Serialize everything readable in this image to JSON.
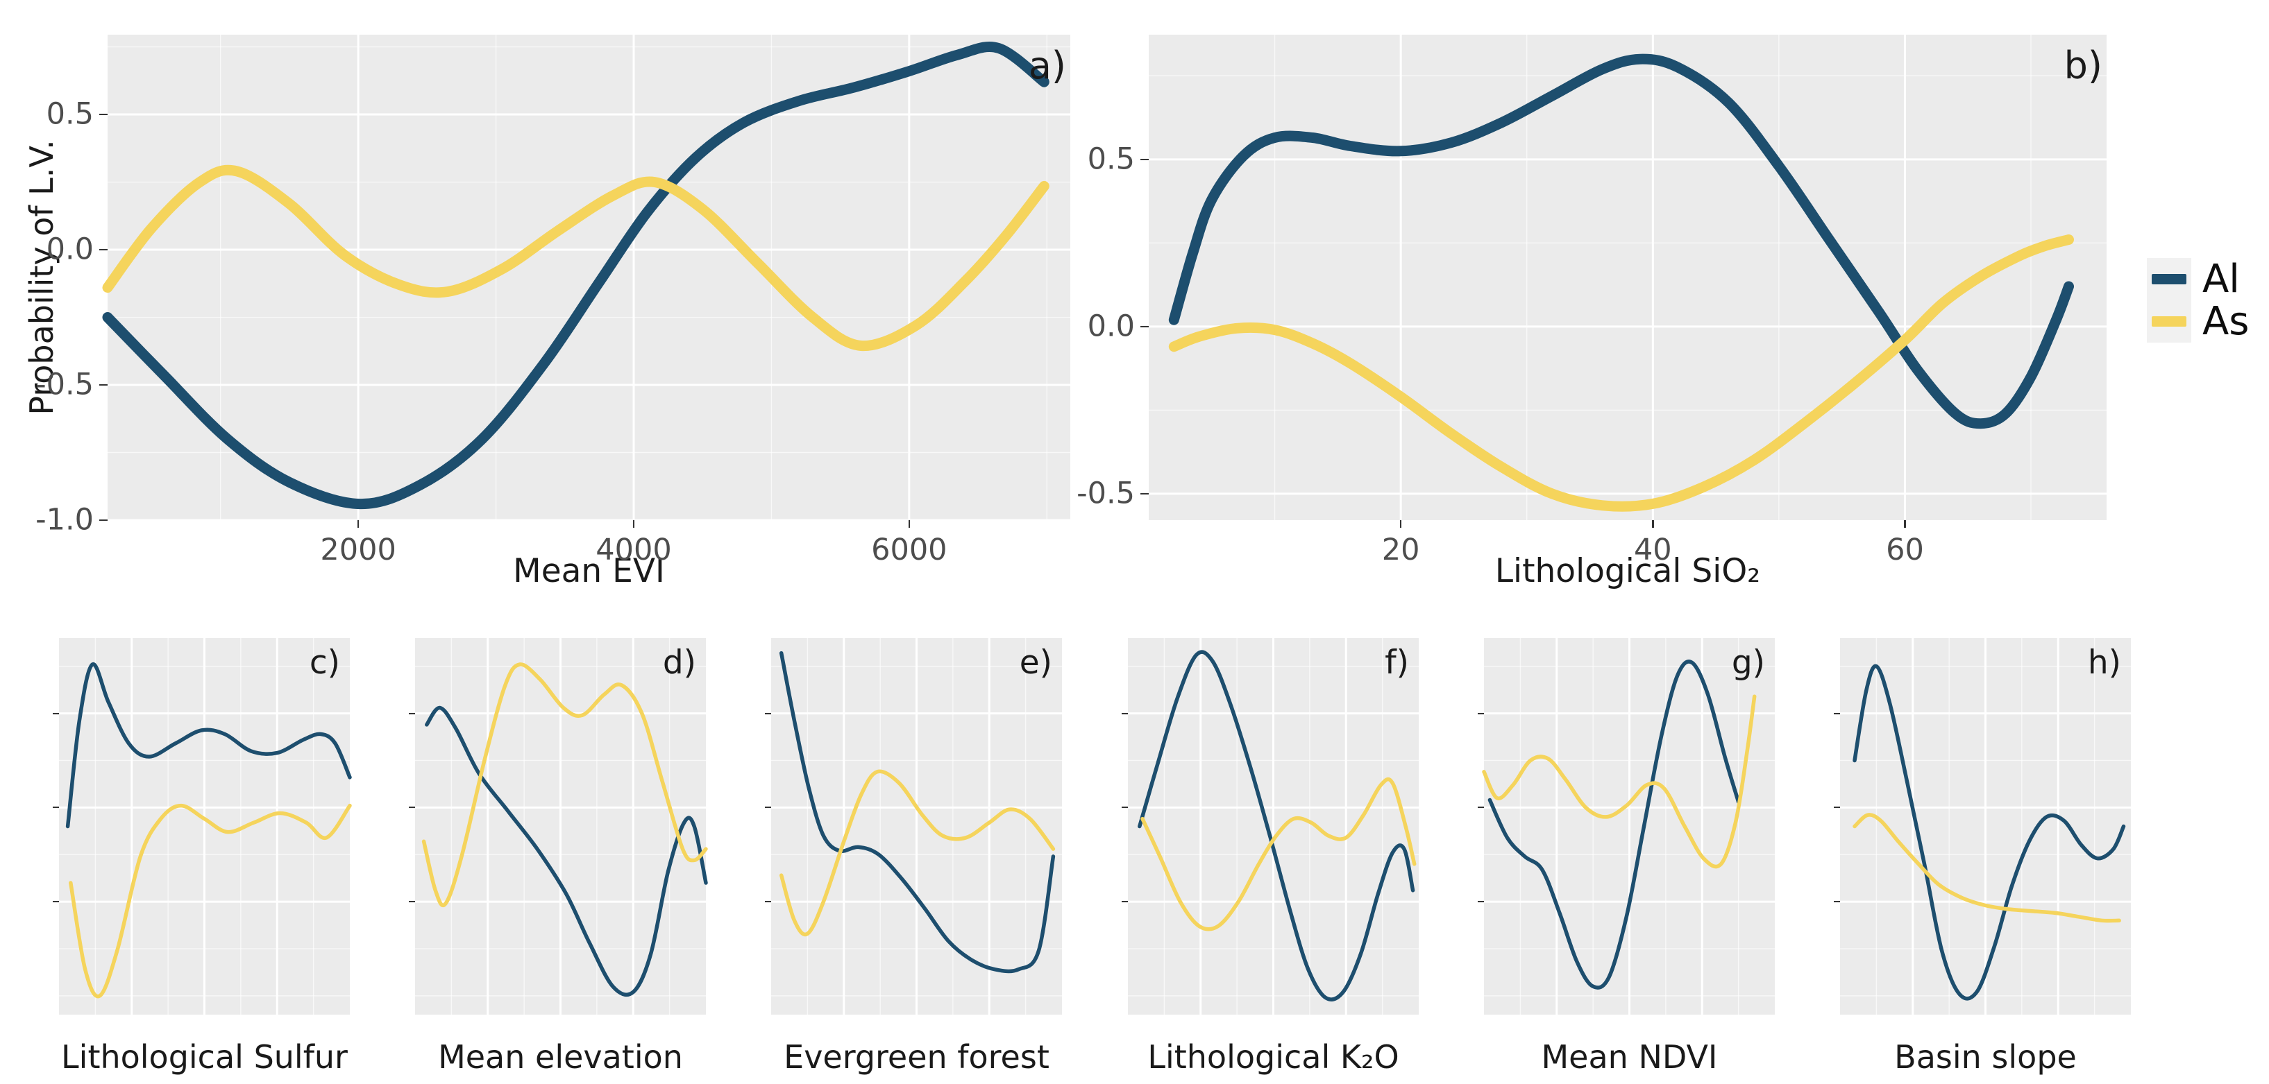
{
  "ylabel": "Probability of L.V.",
  "colors": {
    "al": "#1d4e6e",
    "as": "#f5d45c",
    "panel_bg": "#ebebeb",
    "grid": "#ffffff",
    "tick_text": "#4d4d4d",
    "title_text": "#1a1a1a"
  },
  "legend": {
    "items": [
      {
        "label": "Al",
        "color_key": "al"
      },
      {
        "label": "As",
        "color_key": "as"
      }
    ]
  },
  "chart_data": [
    {
      "id": "a",
      "type": "line",
      "letter": "a)",
      "xlabel": "Mean EVI",
      "xlim": [
        180,
        7170
      ],
      "ylim": [
        -1.0,
        0.795
      ],
      "xticks": [
        {
          "v": 2000,
          "label": "2000"
        },
        {
          "v": 4000,
          "label": "4000"
        },
        {
          "v": 6000,
          "label": "6000"
        }
      ],
      "yticks": [
        {
          "v": 0.5,
          "label": "0.5"
        },
        {
          "v": 0.0,
          "label": "0.0"
        },
        {
          "v": -0.5,
          "label": "-0.5"
        },
        {
          "v": -1.0,
          "label": "-1.0"
        }
      ],
      "xminor": [
        1000,
        3000,
        5000,
        7000
      ],
      "yminor": [
        0.75,
        0.25,
        -0.25,
        -0.75
      ],
      "series": [
        {
          "name": "Al",
          "color_key": "al",
          "x": [
            180,
            600,
            1050,
            1500,
            2010,
            2450,
            2900,
            3350,
            3750,
            4100,
            4450,
            4800,
            5200,
            5600,
            6000,
            6350,
            6650,
            6980
          ],
          "y": [
            -0.25,
            -0.47,
            -0.7,
            -0.86,
            -0.94,
            -0.87,
            -0.7,
            -0.42,
            -0.12,
            0.14,
            0.34,
            0.47,
            0.55,
            0.6,
            0.66,
            0.72,
            0.745,
            0.62
          ]
        },
        {
          "name": "As",
          "color_key": "as",
          "x": [
            180,
            500,
            850,
            1120,
            1500,
            1900,
            2300,
            2650,
            3050,
            3450,
            3850,
            4150,
            4500,
            4900,
            5300,
            5650,
            6050,
            6400,
            6700,
            6980
          ],
          "y": [
            -0.14,
            0.08,
            0.25,
            0.29,
            0.17,
            -0.02,
            -0.13,
            -0.155,
            -0.07,
            0.07,
            0.2,
            0.25,
            0.15,
            -0.05,
            -0.25,
            -0.355,
            -0.28,
            -0.12,
            0.05,
            0.235
          ]
        }
      ]
    },
    {
      "id": "b",
      "type": "line",
      "letter": "b)",
      "xlabel": "Lithological SiO₂",
      "xlim": [
        0,
        76
      ],
      "ylim": [
        -0.579,
        0.873
      ],
      "xticks": [
        {
          "v": 20,
          "label": "20"
        },
        {
          "v": 40,
          "label": "40"
        },
        {
          "v": 60,
          "label": "60"
        }
      ],
      "yticks": [
        {
          "v": 0.5,
          "label": "0.5"
        },
        {
          "v": 0.0,
          "label": "0.0"
        },
        {
          "v": -0.5,
          "label": "-0.5"
        }
      ],
      "xminor": [
        10,
        30,
        50,
        70
      ],
      "yminor": [
        0.75,
        0.25,
        -0.25
      ],
      "series": [
        {
          "name": "Al",
          "color_key": "al",
          "x": [
            2,
            3.5,
            5,
            7.5,
            10,
            13,
            16,
            20,
            24,
            28,
            32,
            36,
            39,
            42,
            46,
            50,
            54,
            58,
            61,
            64,
            66,
            68,
            70,
            72,
            73
          ],
          "y": [
            0.02,
            0.22,
            0.38,
            0.51,
            0.565,
            0.565,
            0.54,
            0.525,
            0.55,
            0.61,
            0.69,
            0.77,
            0.8,
            0.775,
            0.67,
            0.48,
            0.26,
            0.04,
            -0.13,
            -0.26,
            -0.29,
            -0.26,
            -0.15,
            0.02,
            0.12
          ]
        },
        {
          "name": "As",
          "color_key": "as",
          "x": [
            2,
            4,
            7,
            10,
            13,
            16,
            20,
            24,
            28,
            32,
            36,
            40,
            44,
            48,
            52,
            56,
            60,
            63,
            66,
            69,
            71,
            73
          ],
          "y": [
            -0.06,
            -0.03,
            -0.005,
            -0.01,
            -0.05,
            -0.11,
            -0.21,
            -0.32,
            -0.42,
            -0.5,
            -0.535,
            -0.53,
            -0.48,
            -0.4,
            -0.29,
            -0.17,
            -0.04,
            0.07,
            0.15,
            0.21,
            0.24,
            0.26
          ]
        }
      ]
    },
    {
      "id": "c",
      "type": "line",
      "letter": "c)",
      "xlabel": "Lithological Sulfur",
      "xlim": [
        0,
        1
      ],
      "ylim": [
        0,
        1
      ],
      "xticks": [],
      "yticks": [],
      "xminor": [],
      "yminor": [],
      "series": [
        {
          "name": "Al",
          "color_key": "al",
          "x": [
            0.03,
            0.07,
            0.115,
            0.17,
            0.24,
            0.31,
            0.4,
            0.49,
            0.57,
            0.66,
            0.75,
            0.84,
            0.9,
            0.95,
            1.0
          ],
          "y": [
            0.5,
            0.78,
            0.93,
            0.83,
            0.72,
            0.685,
            0.72,
            0.755,
            0.745,
            0.7,
            0.695,
            0.73,
            0.745,
            0.72,
            0.63
          ]
        },
        {
          "name": "As",
          "color_key": "as",
          "x": [
            0.04,
            0.09,
            0.14,
            0.2,
            0.28,
            0.35,
            0.42,
            0.5,
            0.58,
            0.67,
            0.76,
            0.85,
            0.92,
            1.0
          ],
          "y": [
            0.35,
            0.12,
            0.05,
            0.17,
            0.42,
            0.52,
            0.555,
            0.52,
            0.485,
            0.51,
            0.535,
            0.51,
            0.47,
            0.555
          ]
        }
      ]
    },
    {
      "id": "d",
      "type": "line",
      "letter": "d)",
      "xlabel": "Mean elevation",
      "xlim": [
        0,
        1
      ],
      "ylim": [
        0,
        1
      ],
      "xticks": [],
      "yticks": [],
      "xminor": [],
      "yminor": [],
      "series": [
        {
          "name": "Al",
          "color_key": "al",
          "x": [
            0.04,
            0.085,
            0.14,
            0.22,
            0.32,
            0.42,
            0.52,
            0.6,
            0.68,
            0.75,
            0.81,
            0.87,
            0.925,
            0.96,
            1.0
          ],
          "y": [
            0.77,
            0.815,
            0.76,
            0.64,
            0.54,
            0.44,
            0.32,
            0.19,
            0.075,
            0.06,
            0.16,
            0.38,
            0.51,
            0.5,
            0.35
          ]
        },
        {
          "name": "As",
          "color_key": "as",
          "x": [
            0.03,
            0.07,
            0.105,
            0.16,
            0.24,
            0.31,
            0.36,
            0.43,
            0.51,
            0.575,
            0.65,
            0.71,
            0.78,
            0.85,
            0.92,
            0.96,
            1.0
          ],
          "y": [
            0.46,
            0.33,
            0.295,
            0.42,
            0.68,
            0.875,
            0.93,
            0.89,
            0.815,
            0.795,
            0.85,
            0.875,
            0.8,
            0.62,
            0.44,
            0.41,
            0.44
          ]
        }
      ]
    },
    {
      "id": "e",
      "type": "line",
      "letter": "e)",
      "xlabel": "Evergreen forest",
      "xlim": [
        0,
        1
      ],
      "ylim": [
        0,
        1
      ],
      "xticks": [],
      "yticks": [],
      "xminor": [],
      "yminor": [],
      "series": [
        {
          "name": "Al",
          "color_key": "al",
          "x": [
            0.035,
            0.08,
            0.13,
            0.18,
            0.235,
            0.3,
            0.37,
            0.45,
            0.53,
            0.61,
            0.69,
            0.77,
            0.85,
            0.92,
            0.97
          ],
          "y": [
            0.96,
            0.78,
            0.6,
            0.475,
            0.435,
            0.445,
            0.425,
            0.36,
            0.28,
            0.195,
            0.145,
            0.12,
            0.12,
            0.17,
            0.42
          ]
        },
        {
          "name": "As",
          "color_key": "as",
          "x": [
            0.035,
            0.08,
            0.125,
            0.18,
            0.25,
            0.31,
            0.365,
            0.44,
            0.52,
            0.59,
            0.67,
            0.75,
            0.82,
            0.89,
            0.97
          ],
          "y": [
            0.37,
            0.25,
            0.215,
            0.3,
            0.46,
            0.585,
            0.645,
            0.615,
            0.53,
            0.475,
            0.47,
            0.51,
            0.545,
            0.52,
            0.44
          ]
        }
      ]
    },
    {
      "id": "f",
      "type": "line",
      "letter": "f)",
      "xlabel": "Lithological K₂O",
      "xlim": [
        0,
        1
      ],
      "ylim": [
        0,
        1
      ],
      "xticks": [],
      "yticks": [],
      "xminor": [],
      "yminor": [],
      "series": [
        {
          "name": "Al",
          "color_key": "al",
          "x": [
            0.04,
            0.1,
            0.17,
            0.235,
            0.29,
            0.35,
            0.42,
            0.49,
            0.56,
            0.62,
            0.68,
            0.74,
            0.8,
            0.86,
            0.91,
            0.95,
            0.98
          ],
          "y": [
            0.5,
            0.66,
            0.84,
            0.955,
            0.94,
            0.83,
            0.66,
            0.47,
            0.27,
            0.12,
            0.045,
            0.06,
            0.16,
            0.32,
            0.43,
            0.44,
            0.33
          ]
        },
        {
          "name": "As",
          "color_key": "as",
          "x": [
            0.05,
            0.11,
            0.18,
            0.245,
            0.31,
            0.38,
            0.45,
            0.51,
            0.57,
            0.63,
            0.69,
            0.75,
            0.81,
            0.87,
            0.91,
            0.955,
            0.985
          ],
          "y": [
            0.52,
            0.42,
            0.3,
            0.235,
            0.235,
            0.3,
            0.4,
            0.475,
            0.52,
            0.51,
            0.475,
            0.47,
            0.53,
            0.61,
            0.615,
            0.5,
            0.4
          ]
        }
      ]
    },
    {
      "id": "g",
      "type": "line",
      "letter": "g)",
      "xlabel": "Mean NDVI",
      "xlim": [
        0,
        1
      ],
      "ylim": [
        0,
        1
      ],
      "xticks": [],
      "yticks": [],
      "xminor": [],
      "yminor": [],
      "series": [
        {
          "name": "Al",
          "color_key": "al",
          "x": [
            0.02,
            0.08,
            0.14,
            0.2,
            0.26,
            0.32,
            0.375,
            0.43,
            0.49,
            0.55,
            0.61,
            0.665,
            0.715,
            0.77,
            0.83,
            0.875
          ],
          "y": [
            0.57,
            0.47,
            0.42,
            0.385,
            0.27,
            0.14,
            0.075,
            0.1,
            0.26,
            0.5,
            0.74,
            0.9,
            0.935,
            0.85,
            0.68,
            0.565
          ]
        },
        {
          "name": "As",
          "color_key": "as",
          "x": [
            0.0,
            0.045,
            0.1,
            0.16,
            0.22,
            0.28,
            0.35,
            0.42,
            0.49,
            0.56,
            0.62,
            0.69,
            0.755,
            0.815,
            0.865,
            0.905,
            0.93
          ],
          "y": [
            0.645,
            0.575,
            0.61,
            0.675,
            0.68,
            0.625,
            0.55,
            0.525,
            0.555,
            0.61,
            0.6,
            0.5,
            0.415,
            0.4,
            0.51,
            0.7,
            0.845
          ]
        }
      ]
    },
    {
      "id": "h",
      "type": "line",
      "letter": "h)",
      "xlabel": "Basin slope",
      "xlim": [
        0,
        1
      ],
      "ylim": [
        0,
        1
      ],
      "xticks": [],
      "yticks": [],
      "xminor": [],
      "yminor": [],
      "series": [
        {
          "name": "Al",
          "color_key": "al",
          "x": [
            0.05,
            0.09,
            0.125,
            0.17,
            0.23,
            0.29,
            0.35,
            0.41,
            0.47,
            0.53,
            0.59,
            0.65,
            0.71,
            0.77,
            0.83,
            0.885,
            0.94,
            0.975
          ],
          "y": [
            0.675,
            0.86,
            0.925,
            0.83,
            0.62,
            0.4,
            0.17,
            0.055,
            0.06,
            0.18,
            0.34,
            0.46,
            0.525,
            0.515,
            0.45,
            0.415,
            0.44,
            0.5
          ]
        },
        {
          "name": "As",
          "color_key": "as",
          "x": [
            0.05,
            0.095,
            0.14,
            0.2,
            0.27,
            0.34,
            0.42,
            0.5,
            0.58,
            0.66,
            0.74,
            0.82,
            0.9,
            0.96
          ],
          "y": [
            0.5,
            0.53,
            0.515,
            0.46,
            0.4,
            0.345,
            0.31,
            0.29,
            0.28,
            0.275,
            0.27,
            0.26,
            0.25,
            0.25
          ]
        }
      ]
    }
  ]
}
